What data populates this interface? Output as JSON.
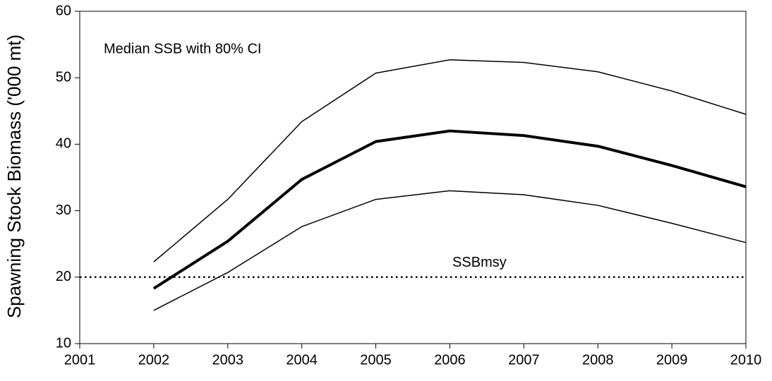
{
  "chart_data": {
    "type": "line",
    "y_label": "Spawning Stock Biomass ('000 mt)",
    "annotation": "Median SSB with 80% CI",
    "x": [
      2002,
      2003,
      2004,
      2005,
      2006,
      2007,
      2008,
      2009,
      2010
    ],
    "series": [
      {
        "color": "#000000",
        "weight": "thin",
        "values": [
          15.0,
          20.7,
          27.6,
          31.7,
          33.0,
          32.4,
          30.8,
          28.1,
          25.2
        ]
      },
      {
        "color": "#000000",
        "weight": "thin",
        "values": [
          22.3,
          31.7,
          43.4,
          50.7,
          52.7,
          52.3,
          50.9,
          48.0,
          44.5
        ]
      },
      {
        "color": "#000000",
        "weight": "bold",
        "values": [
          18.3,
          25.4,
          34.7,
          40.4,
          42.0,
          41.3,
          39.7,
          36.8,
          33.6
        ]
      }
    ],
    "reference_line": {
      "value": 20,
      "label": "SSBmsy",
      "style": "dotted",
      "color": "#000000"
    },
    "xlim": [
      2001,
      2010
    ],
    "xticks": [
      2001,
      2002,
      2003,
      2004,
      2005,
      2006,
      2007,
      2008,
      2009,
      2010
    ],
    "ylim": [
      10,
      60
    ],
    "yticks": [
      10,
      20,
      30,
      40,
      50,
      60
    ],
    "grid": false
  }
}
